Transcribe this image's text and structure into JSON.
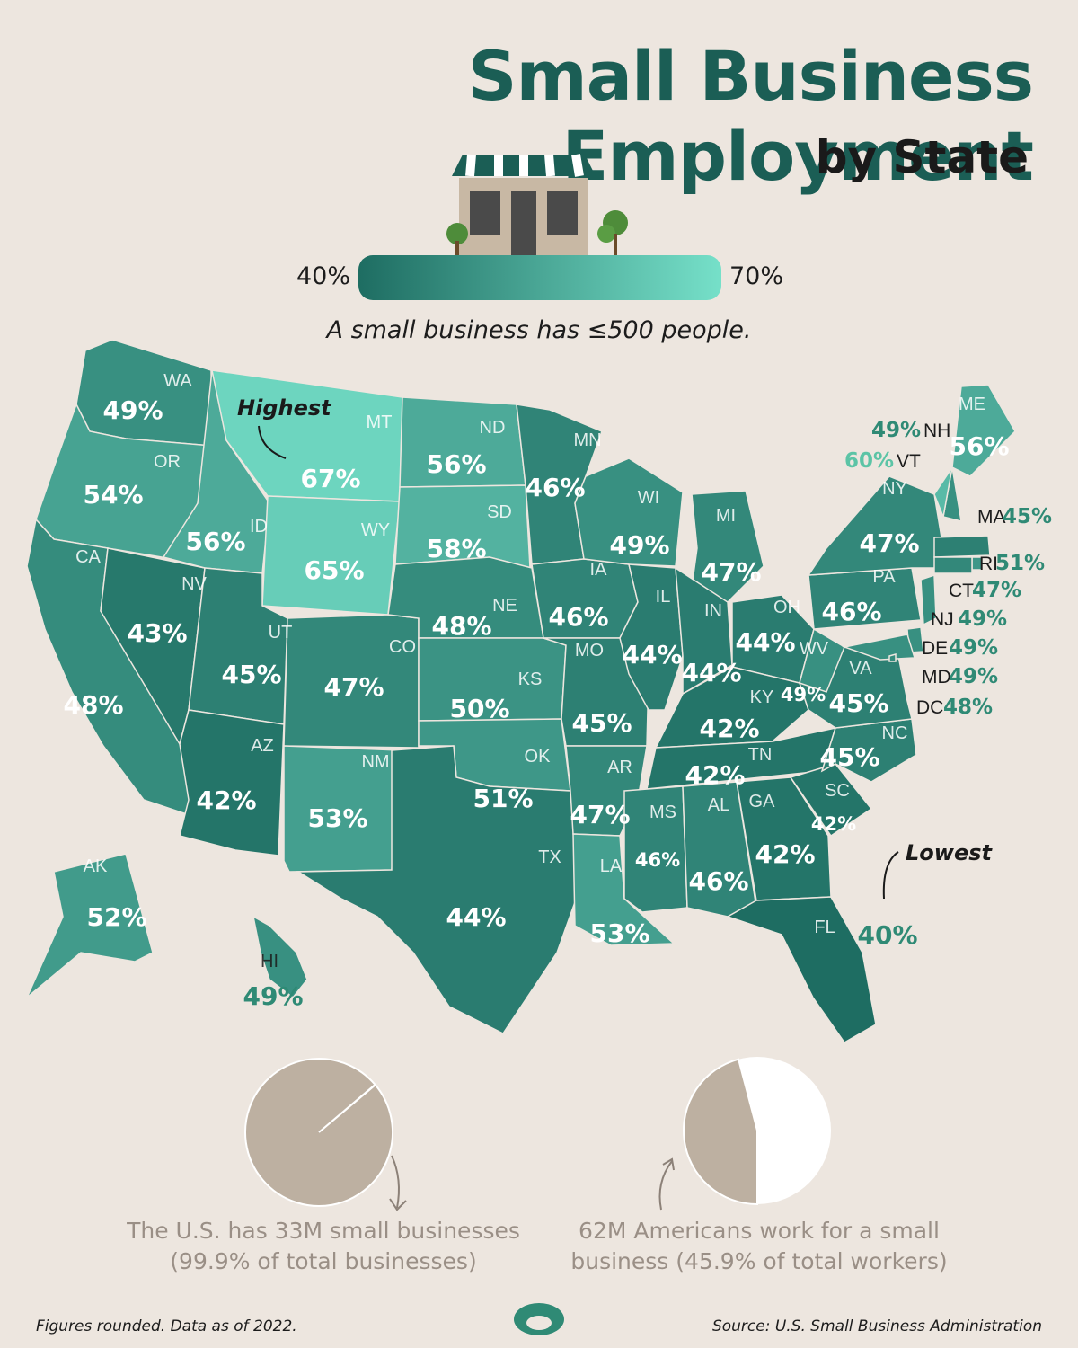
{
  "title": "Small Business Employment",
  "subtitle": "by State",
  "legend": {
    "min_label": "40%",
    "max_label": "70%",
    "min": 40,
    "max": 70,
    "color_low": "#1e6d62",
    "color_high": "#76e0c9",
    "note": "A small business has ≤500 people."
  },
  "callouts": {
    "highest": "Highest",
    "lowest": "Lowest"
  },
  "states": [
    {
      "abbr": "WA",
      "value": 49,
      "text": "49%"
    },
    {
      "abbr": "OR",
      "value": 54,
      "text": "54%"
    },
    {
      "abbr": "CA",
      "value": 48,
      "text": "48%"
    },
    {
      "abbr": "NV",
      "value": 43,
      "text": "43%"
    },
    {
      "abbr": "ID",
      "value": 56,
      "text": "56%"
    },
    {
      "abbr": "MT",
      "value": 67,
      "text": "67%"
    },
    {
      "abbr": "WY",
      "value": 65,
      "text": "65%"
    },
    {
      "abbr": "UT",
      "value": 45,
      "text": "45%"
    },
    {
      "abbr": "AZ",
      "value": 42,
      "text": "42%"
    },
    {
      "abbr": "CO",
      "value": 47,
      "text": "47%"
    },
    {
      "abbr": "NM",
      "value": 53,
      "text": "53%"
    },
    {
      "abbr": "ND",
      "value": 56,
      "text": "56%"
    },
    {
      "abbr": "SD",
      "value": 58,
      "text": "58%"
    },
    {
      "abbr": "NE",
      "value": 48,
      "text": "48%"
    },
    {
      "abbr": "KS",
      "value": 50,
      "text": "50%"
    },
    {
      "abbr": "OK",
      "value": 51,
      "text": "51%"
    },
    {
      "abbr": "TX",
      "value": 44,
      "text": "44%"
    },
    {
      "abbr": "MN",
      "value": 46,
      "text": "46%"
    },
    {
      "abbr": "IA",
      "value": 46,
      "text": "46%"
    },
    {
      "abbr": "MO",
      "value": 45,
      "text": "45%"
    },
    {
      "abbr": "AR",
      "value": 47,
      "text": "47%"
    },
    {
      "abbr": "LA",
      "value": 53,
      "text": "53%"
    },
    {
      "abbr": "WI",
      "value": 49,
      "text": "49%"
    },
    {
      "abbr": "IL",
      "value": 44,
      "text": "44%"
    },
    {
      "abbr": "MI",
      "value": 47,
      "text": "47%"
    },
    {
      "abbr": "IN",
      "value": 44,
      "text": "44%"
    },
    {
      "abbr": "OH",
      "value": 44,
      "text": "44%"
    },
    {
      "abbr": "KY",
      "value": 42,
      "text": "42%"
    },
    {
      "abbr": "TN",
      "value": 42,
      "text": "42%"
    },
    {
      "abbr": "MS",
      "value": 46,
      "text": "46%"
    },
    {
      "abbr": "AL",
      "value": 46,
      "text": "46%"
    },
    {
      "abbr": "GA",
      "value": 42,
      "text": "42%"
    },
    {
      "abbr": "FL",
      "value": 40,
      "text": "40%"
    },
    {
      "abbr": "SC",
      "value": 42,
      "text": "42%"
    },
    {
      "abbr": "NC",
      "value": 45,
      "text": "45%"
    },
    {
      "abbr": "VA",
      "value": 45,
      "text": "45%"
    },
    {
      "abbr": "WV",
      "value": 49,
      "text": "49%"
    },
    {
      "abbr": "PA",
      "value": 46,
      "text": "46%"
    },
    {
      "abbr": "NY",
      "value": 47,
      "text": "47%"
    },
    {
      "abbr": "ME",
      "value": 56,
      "text": "56%"
    },
    {
      "abbr": "AK",
      "value": 52,
      "text": "52%"
    },
    {
      "abbr": "HI",
      "value": 49,
      "text": "49%"
    },
    {
      "abbr": "NH",
      "value": 49,
      "text": "49%"
    },
    {
      "abbr": "VT",
      "value": 60,
      "text": "60%"
    },
    {
      "abbr": "MA",
      "value": 45,
      "text": "45%"
    },
    {
      "abbr": "RI",
      "value": 51,
      "text": "51%"
    },
    {
      "abbr": "CT",
      "value": 47,
      "text": "47%"
    },
    {
      "abbr": "NJ",
      "value": 49,
      "text": "49%"
    },
    {
      "abbr": "DE",
      "value": 49,
      "text": "49%"
    },
    {
      "abbr": "MD",
      "value": 49,
      "text": "49%"
    },
    {
      "abbr": "DC",
      "value": 48,
      "text": "48%"
    }
  ],
  "stats": [
    {
      "text_line1": "The U.S. has 33M small businesses",
      "text_line2": "(99.9% of total businesses)",
      "share": 99.9
    },
    {
      "text_line1": "62M Americans work for a small",
      "text_line2": "business (45.9% of total workers)",
      "share": 45.9
    }
  ],
  "colors": {
    "pie_fill": "#bdb0a1",
    "pie_rest": "#ffffff",
    "background": "#ede6df",
    "brand": "#1b5e55"
  },
  "footnote": "Figures rounded. Data as of 2022.",
  "source": "Source: U.S. Small Business Administration"
}
